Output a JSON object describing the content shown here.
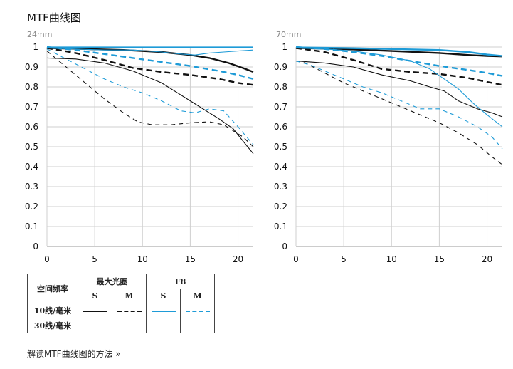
{
  "page": {
    "title": "MTF曲线图",
    "link": "解读MTF曲线图的方法 »"
  },
  "legend": {
    "header": "空间频率",
    "group1": "最大光圈",
    "group2": "F8",
    "sub": [
      "S",
      "M",
      "S",
      "M"
    ],
    "rows": [
      "10线/毫米",
      "30线/毫米"
    ]
  },
  "colors": {
    "black": "#111111",
    "blue": "#1e9bd7"
  },
  "chart_data": [
    {
      "type": "line",
      "label": "24mm",
      "xlim": [
        0,
        21.6
      ],
      "ylim": [
        0,
        1
      ],
      "xticks": [
        0,
        5,
        10,
        15,
        20
      ],
      "yticks": [
        0,
        0.1,
        0.2,
        0.3,
        0.4,
        0.5,
        0.6,
        0.7,
        0.8,
        0.9,
        1
      ],
      "ytick_labels": [
        "0",
        "0.1",
        "0.2",
        "0.3",
        "0.4",
        "0.5",
        "0.6",
        "0.7",
        "0.8",
        "0.9",
        "1"
      ],
      "series": [
        {
          "aperture": "最大光圈",
          "freq": "10线/毫米",
          "dir": "S",
          "x": [
            0,
            4,
            8,
            12,
            15,
            17,
            19,
            20.5,
            21.6
          ],
          "y": [
            0.995,
            0.99,
            0.985,
            0.975,
            0.96,
            0.945,
            0.92,
            0.895,
            0.875
          ]
        },
        {
          "aperture": "最大光圈",
          "freq": "10线/毫米",
          "dir": "M",
          "x": [
            0,
            3,
            6,
            9,
            12,
            15,
            18,
            20,
            21.6
          ],
          "y": [
            0.995,
            0.97,
            0.935,
            0.895,
            0.875,
            0.86,
            0.84,
            0.82,
            0.81
          ]
        },
        {
          "aperture": "F8",
          "freq": "10线/毫米",
          "dir": "S",
          "x": [
            0,
            5,
            10,
            15,
            21.6
          ],
          "y": [
            0.998,
            0.998,
            0.998,
            0.998,
            0.998
          ]
        },
        {
          "aperture": "F8",
          "freq": "10线/毫米",
          "dir": "M",
          "x": [
            0,
            3,
            6,
            9,
            12,
            15,
            18,
            20,
            21.6
          ],
          "y": [
            1.0,
            0.985,
            0.965,
            0.945,
            0.925,
            0.905,
            0.88,
            0.86,
            0.84
          ]
        },
        {
          "aperture": "最大光圈",
          "freq": "30线/毫米",
          "dir": "S",
          "x": [
            0,
            3,
            6,
            9,
            12,
            14,
            16,
            18,
            19.5,
            20.5,
            21.6
          ],
          "y": [
            0.945,
            0.94,
            0.92,
            0.88,
            0.82,
            0.76,
            0.7,
            0.64,
            0.59,
            0.53,
            0.465
          ]
        },
        {
          "aperture": "最大光圈",
          "freq": "30线/毫米",
          "dir": "M",
          "x": [
            0,
            2,
            4,
            6,
            8,
            9.5,
            11,
            13,
            15,
            17,
            18.5,
            19.5,
            20.5,
            21.6
          ],
          "y": [
            0.98,
            0.9,
            0.82,
            0.74,
            0.67,
            0.625,
            0.61,
            0.61,
            0.62,
            0.625,
            0.61,
            0.58,
            0.55,
            0.5
          ]
        },
        {
          "aperture": "F8",
          "freq": "30线/毫米",
          "dir": "S",
          "x": [
            0,
            3,
            6,
            9,
            12,
            14,
            15.5,
            17,
            18.5,
            20,
            21.6
          ],
          "y": [
            0.995,
            0.99,
            0.985,
            0.985,
            0.975,
            0.965,
            0.96,
            0.97,
            0.975,
            0.98,
            0.985
          ]
        },
        {
          "aperture": "F8",
          "freq": "30线/毫米",
          "dir": "M",
          "x": [
            0,
            2,
            4,
            6,
            8,
            10,
            12,
            14,
            15.5,
            17,
            18.5,
            20,
            21.6
          ],
          "y": [
            0.99,
            0.94,
            0.89,
            0.84,
            0.8,
            0.77,
            0.73,
            0.68,
            0.67,
            0.69,
            0.68,
            0.6,
            0.51
          ]
        }
      ]
    },
    {
      "type": "line",
      "label": "70mm",
      "xlim": [
        0,
        21.6
      ],
      "ylim": [
        0,
        1
      ],
      "xticks": [
        0,
        5,
        10,
        15,
        20
      ],
      "yticks": [
        0,
        0.1,
        0.2,
        0.3,
        0.4,
        0.5,
        0.6,
        0.7,
        0.8,
        0.9,
        1
      ],
      "ytick_labels": [
        "0",
        "0.1",
        "0.2",
        "0.3",
        "0.4",
        "0.5",
        "0.6",
        "0.7",
        "0.8",
        "0.9",
        "1"
      ],
      "series": [
        {
          "aperture": "最大光圈",
          "freq": "10线/毫米",
          "dir": "S",
          "x": [
            0,
            5,
            10,
            15,
            18,
            20,
            21.6
          ],
          "y": [
            0.995,
            0.99,
            0.98,
            0.97,
            0.96,
            0.955,
            0.953
          ]
        },
        {
          "aperture": "最大光圈",
          "freq": "10线/毫米",
          "dir": "M",
          "x": [
            0,
            3,
            6,
            9,
            12,
            15,
            18,
            20,
            21.6
          ],
          "y": [
            0.995,
            0.975,
            0.935,
            0.89,
            0.875,
            0.865,
            0.845,
            0.825,
            0.81
          ]
        },
        {
          "aperture": "F8",
          "freq": "10线/毫米",
          "dir": "S",
          "x": [
            0,
            5,
            10,
            15,
            18,
            20,
            21.6
          ],
          "y": [
            0.998,
            0.995,
            0.99,
            0.985,
            0.975,
            0.962,
            0.955
          ]
        },
        {
          "aperture": "F8",
          "freq": "10线/毫米",
          "dir": "M",
          "x": [
            0,
            3,
            6,
            9,
            12,
            15,
            18,
            20,
            21.6
          ],
          "y": [
            1.0,
            0.99,
            0.975,
            0.955,
            0.93,
            0.905,
            0.885,
            0.87,
            0.855
          ]
        },
        {
          "aperture": "最大光圈",
          "freq": "30线/毫米",
          "dir": "S",
          "x": [
            0,
            3,
            6,
            9,
            12,
            14,
            15.5,
            17,
            19,
            20.5,
            21.6
          ],
          "y": [
            0.93,
            0.92,
            0.9,
            0.86,
            0.83,
            0.8,
            0.78,
            0.73,
            0.69,
            0.67,
            0.65
          ]
        },
        {
          "aperture": "最大光圈",
          "freq": "30线/毫米",
          "dir": "M",
          "x": [
            0,
            1,
            3,
            5,
            7,
            9,
            11,
            13,
            15,
            17,
            19,
            20.5,
            21.6
          ],
          "y": [
            0.93,
            0.92,
            0.87,
            0.82,
            0.78,
            0.74,
            0.7,
            0.66,
            0.62,
            0.57,
            0.51,
            0.45,
            0.41
          ]
        },
        {
          "aperture": "F8",
          "freq": "30线/毫米",
          "dir": "S",
          "x": [
            0,
            3,
            6,
            9,
            12,
            14,
            15.5,
            17,
            18.5,
            20,
            21.6
          ],
          "y": [
            0.995,
            0.99,
            0.98,
            0.96,
            0.93,
            0.89,
            0.84,
            0.79,
            0.72,
            0.66,
            0.6
          ]
        },
        {
          "aperture": "F8",
          "freq": "30线/毫米",
          "dir": "M",
          "x": [
            0,
            1.5,
            3,
            5,
            7,
            9,
            11,
            13,
            15,
            17,
            19,
            20.5,
            21.6
          ],
          "y": [
            0.93,
            0.91,
            0.88,
            0.84,
            0.8,
            0.77,
            0.73,
            0.69,
            0.69,
            0.65,
            0.6,
            0.55,
            0.49
          ]
        }
      ]
    }
  ]
}
